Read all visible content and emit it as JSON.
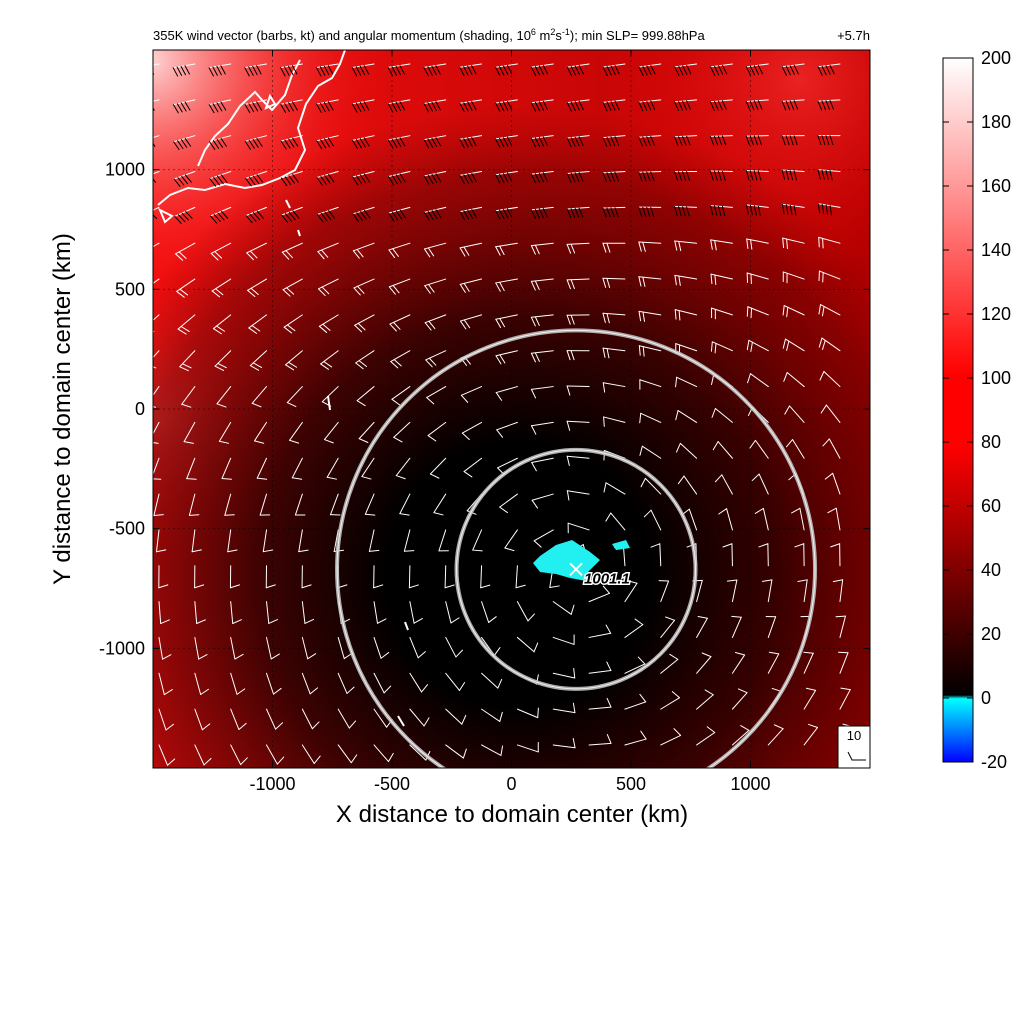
{
  "chart_data": {
    "type": "heatmap",
    "title": "355K wind vector (barbs, kt) and angular momentum (shading, 10",
    "title_units_exp": "6",
    "title_units_mid": " m",
    "title_units_exp2": "2",
    "title_units_s": "s",
    "title_units_exp3": "-1",
    "title_tail": "); min SLP= 999.88hPa",
    "time_label": "+5.7h",
    "xlabel": "X distance to domain center (km)",
    "ylabel": "Y distance to domain center (km)",
    "xlim": [
      -1500,
      1500
    ],
    "ylim": [
      -1500,
      1500
    ],
    "x_ticks": [
      -1000,
      -500,
      0,
      500,
      1000
    ],
    "y_ticks": [
      -1000,
      -500,
      0,
      500,
      1000
    ],
    "x_tick_labels": [
      "-1000",
      "-500",
      "0",
      "500",
      "1000"
    ],
    "y_tick_labels": [
      "-1000",
      "-500",
      "0",
      "500",
      "1000"
    ],
    "grid": true,
    "colorbar": {
      "ticks": [
        "200",
        "180",
        "160",
        "140",
        "120",
        "100",
        "80",
        "60",
        "40",
        "20",
        "0",
        "-20"
      ],
      "range": [
        -20,
        200
      ],
      "colors": [
        "#0000ff",
        "#00ffff",
        "#000000",
        "#ff0000",
        "#ffffff"
      ]
    },
    "storm_center": {
      "x": 270,
      "y": -670,
      "label": "1001.1"
    },
    "circles_radius_km": [
      500,
      1000
    ],
    "reference_barb": {
      "label": "10"
    },
    "negative_region_center": {
      "x": 250,
      "y": -640
    },
    "colors": {
      "background": "#ffffff",
      "coast": "#ffffff",
      "circle": "#bfbfbf",
      "negative": "#22f0f0"
    }
  }
}
